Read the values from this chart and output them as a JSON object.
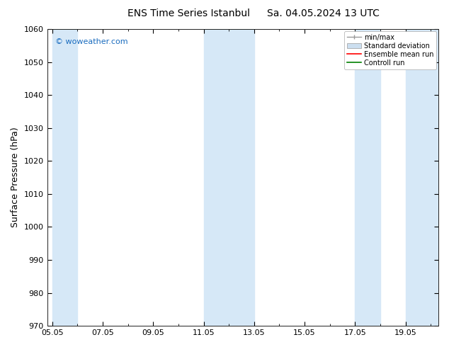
{
  "title_left": "ENS Time Series Istanbul",
  "title_right": "Sa. 04.05.2024 13 UTC",
  "ylabel": "Surface Pressure (hPa)",
  "ylim": [
    970,
    1060
  ],
  "yticks": [
    970,
    980,
    990,
    1000,
    1010,
    1020,
    1030,
    1040,
    1050,
    1060
  ],
  "xlim_start": 4.8,
  "xlim_end": 20.3,
  "xtick_labels": [
    "05.05",
    "07.05",
    "09.05",
    "11.05",
    "13.05",
    "15.05",
    "17.05",
    "19.05"
  ],
  "xtick_positions": [
    5,
    7,
    9,
    11,
    13,
    15,
    17,
    19
  ],
  "watermark": "© woweather.com",
  "watermark_color": "#1a6cbf",
  "bg_color": "#ffffff",
  "plot_bg_color": "#ffffff",
  "shaded_bands": [
    {
      "x_start": 5.0,
      "x_end": 6.0,
      "color": "#d6e8f7"
    },
    {
      "x_start": 11.0,
      "x_end": 13.0,
      "color": "#d6e8f7"
    },
    {
      "x_start": 17.0,
      "x_end": 18.0,
      "color": "#d6e8f7"
    },
    {
      "x_start": 19.0,
      "x_end": 20.3,
      "color": "#d6e8f7"
    }
  ],
  "legend_items": [
    {
      "label": "min/max",
      "color": "#999999",
      "type": "errorbar"
    },
    {
      "label": "Standard deviation",
      "color": "#ccdff0",
      "type": "bar"
    },
    {
      "label": "Ensemble mean run",
      "color": "#ff0000",
      "type": "line"
    },
    {
      "label": "Controll run",
      "color": "#008000",
      "type": "line"
    }
  ],
  "tick_label_fontsize": 8,
  "axis_label_fontsize": 9,
  "title_fontsize": 10,
  "watermark_fontsize": 8,
  "legend_fontsize": 7
}
